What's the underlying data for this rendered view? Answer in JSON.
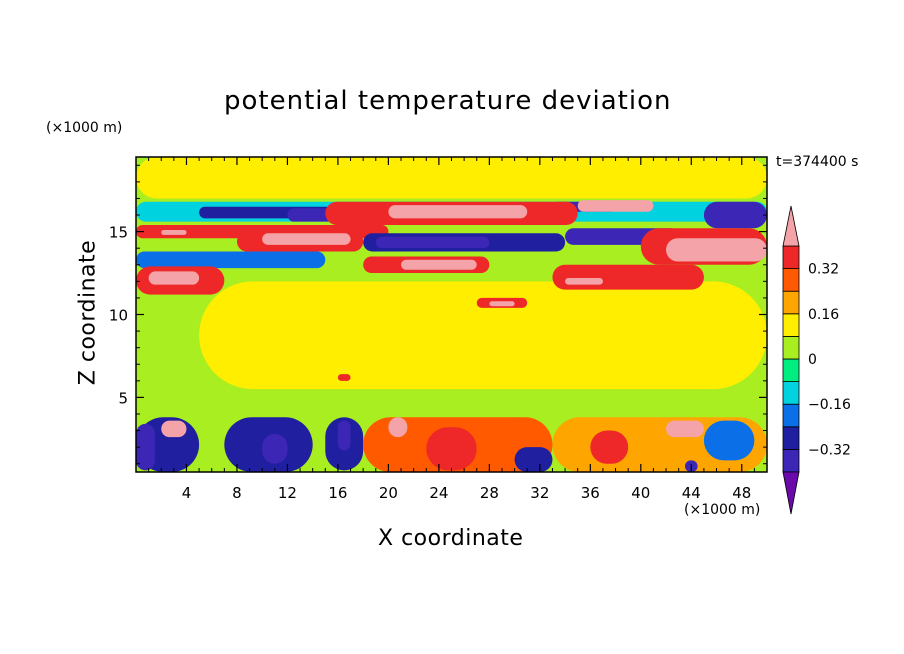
{
  "chart_data": {
    "type": "heatmap",
    "title": "potential temperature deviation",
    "xlabel": "X coordinate",
    "ylabel": "Z coordinate",
    "x_unit": "(×1000 m)",
    "y_unit": "(×1000 m)",
    "time_label": "t=374400 s",
    "xlim": [
      0,
      50
    ],
    "ylim": [
      0.5,
      19.5
    ],
    "x_ticks": [
      4,
      8,
      12,
      16,
      20,
      24,
      28,
      32,
      36,
      40,
      44,
      48
    ],
    "y_ticks": [
      5,
      10,
      15
    ],
    "colorbar": {
      "levels": [
        -0.4,
        -0.32,
        -0.24,
        -0.16,
        -0.08,
        0,
        0.08,
        0.16,
        0.24,
        0.32,
        0.4
      ],
      "labels": [
        "0.32",
        "0.16",
        "0",
        "−0.16",
        "−0.32"
      ],
      "label_values": [
        0.32,
        0.16,
        0,
        -0.16,
        -0.32
      ],
      "colors": [
        "#6a0aab",
        "#3b26b5",
        "#1f1fa0",
        "#0b6fe8",
        "#00d2e0",
        "#00ee80",
        "#a8ee20",
        "#ffee00",
        "#ffa500",
        "#ff5a00",
        "#ee2828",
        "#f4a4a8"
      ]
    },
    "fields": [
      {
        "x": [
          0,
          50
        ],
        "z": [
          0.5,
          19.5
        ],
        "level": 0
      },
      {
        "x": [
          0,
          50
        ],
        "z": [
          17,
          19.5
        ],
        "level": 0.08
      },
      {
        "x": [
          5,
          50
        ],
        "z": [
          5.5,
          12
        ],
        "level": 0.08
      },
      {
        "x": [
          0,
          50
        ],
        "z": [
          3.8,
          4.2
        ],
        "level": 0
      },
      {
        "x": [
          0,
          50
        ],
        "z": [
          15.6,
          16.8
        ],
        "level": -0.16
      },
      {
        "x": [
          5,
          20
        ],
        "z": [
          15.8,
          16.5
        ],
        "level": -0.32
      },
      {
        "x": [
          12,
          17
        ],
        "z": [
          15.6,
          16.4
        ],
        "level": -0.4
      },
      {
        "x": [
          33,
          38
        ],
        "z": [
          16.2,
          16.8
        ],
        "level": -0.4
      },
      {
        "x": [
          45,
          50
        ],
        "z": [
          15.2,
          16.8
        ],
        "level": -0.4
      },
      {
        "x": [
          0,
          20
        ],
        "z": [
          14.6,
          15.4
        ],
        "level": 0.32
      },
      {
        "x": [
          2,
          4
        ],
        "z": [
          14.8,
          15.1
        ],
        "level": 0.4
      },
      {
        "x": [
          15,
          35
        ],
        "z": [
          15.4,
          16.8
        ],
        "level": 0.32
      },
      {
        "x": [
          20,
          31
        ],
        "z": [
          15.8,
          16.6
        ],
        "level": 0.4
      },
      {
        "x": [
          35,
          41
        ],
        "z": [
          16.2,
          16.9
        ],
        "level": 0.4
      },
      {
        "x": [
          18,
          34
        ],
        "z": [
          13.8,
          14.9
        ],
        "level": -0.32
      },
      {
        "x": [
          19,
          28
        ],
        "z": [
          14.0,
          14.7
        ],
        "level": -0.4
      },
      {
        "x": [
          34,
          43
        ],
        "z": [
          14.2,
          15.2
        ],
        "level": -0.4
      },
      {
        "x": [
          8,
          18
        ],
        "z": [
          13.8,
          15.0
        ],
        "level": 0.32
      },
      {
        "x": [
          10,
          17
        ],
        "z": [
          14.2,
          14.9
        ],
        "level": 0.4
      },
      {
        "x": [
          40,
          50
        ],
        "z": [
          13.0,
          15.2
        ],
        "level": 0.32
      },
      {
        "x": [
          42,
          50
        ],
        "z": [
          13.2,
          14.6
        ],
        "level": 0.4
      },
      {
        "x": [
          0,
          15
        ],
        "z": [
          12.8,
          13.8
        ],
        "level": -0.24
      },
      {
        "x": [
          18,
          28
        ],
        "z": [
          12.5,
          13.5
        ],
        "level": 0.32
      },
      {
        "x": [
          21,
          27
        ],
        "z": [
          12.7,
          13.3
        ],
        "level": 0.4
      },
      {
        "x": [
          0,
          7
        ],
        "z": [
          11.2,
          12.9
        ],
        "level": 0.32
      },
      {
        "x": [
          1,
          5
        ],
        "z": [
          11.8,
          12.6
        ],
        "level": 0.4
      },
      {
        "x": [
          33,
          45
        ],
        "z": [
          11.5,
          13.0
        ],
        "level": 0.32
      },
      {
        "x": [
          34,
          37
        ],
        "z": [
          11.8,
          12.2
        ],
        "level": 0.4
      },
      {
        "x": [
          27,
          31
        ],
        "z": [
          10.4,
          11.0
        ],
        "level": 0.32
      },
      {
        "x": [
          28,
          30
        ],
        "z": [
          10.5,
          10.8
        ],
        "level": 0.4
      },
      {
        "x": [
          0,
          5
        ],
        "z": [
          0.5,
          3.8
        ],
        "level": -0.32
      },
      {
        "x": [
          0,
          1.5
        ],
        "z": [
          0.6,
          3.4
        ],
        "level": -0.4
      },
      {
        "x": [
          2,
          4
        ],
        "z": [
          2.6,
          3.6
        ],
        "level": 0.4
      },
      {
        "x": [
          7,
          14
        ],
        "z": [
          0.5,
          3.8
        ],
        "level": -0.32
      },
      {
        "x": [
          10,
          12
        ],
        "z": [
          1.0,
          2.8
        ],
        "level": -0.4
      },
      {
        "x": [
          15,
          18
        ],
        "z": [
          0.6,
          3.8
        ],
        "level": -0.32
      },
      {
        "x": [
          16,
          17
        ],
        "z": [
          1.8,
          3.6
        ],
        "level": -0.4
      },
      {
        "x": [
          18,
          33
        ],
        "z": [
          0.5,
          3.8
        ],
        "level": 0.24
      },
      {
        "x": [
          23,
          27
        ],
        "z": [
          0.6,
          3.2
        ],
        "level": 0.32
      },
      {
        "x": [
          20,
          21.5
        ],
        "z": [
          2.6,
          3.8
        ],
        "level": 0.4
      },
      {
        "x": [
          30,
          33
        ],
        "z": [
          0.5,
          2.0
        ],
        "level": -0.32
      },
      {
        "x": [
          33,
          50
        ],
        "z": [
          0.5,
          3.8
        ],
        "level": 0.16
      },
      {
        "x": [
          36,
          39
        ],
        "z": [
          1.0,
          3.0
        ],
        "level": 0.32
      },
      {
        "x": [
          42,
          45
        ],
        "z": [
          2.6,
          3.6
        ],
        "level": 0.4
      },
      {
        "x": [
          45,
          49
        ],
        "z": [
          1.2,
          3.6
        ],
        "level": -0.24
      },
      {
        "x": [
          43.5,
          44.5
        ],
        "z": [
          0.5,
          1.2
        ],
        "level": -0.4
      },
      {
        "x": [
          16,
          17
        ],
        "z": [
          6.0,
          6.4
        ],
        "level": 0.32
      }
    ]
  }
}
